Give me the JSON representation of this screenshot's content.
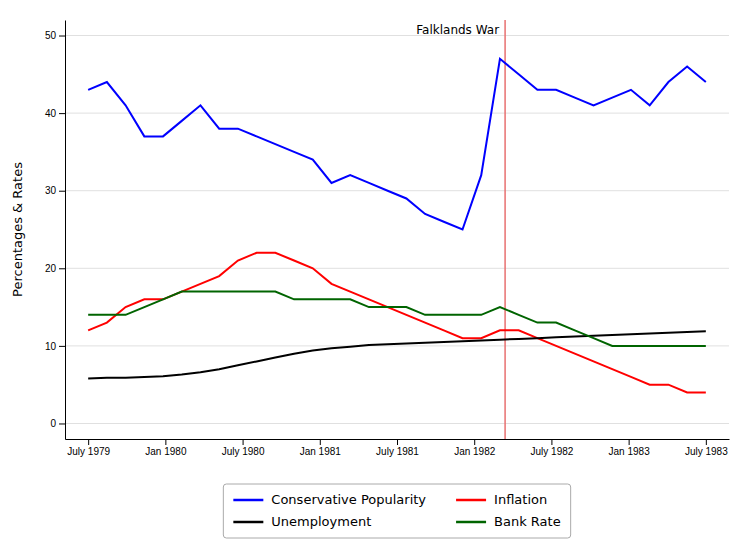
{
  "chart_data": {
    "type": "line",
    "ylabel": "Percentages & Rates",
    "x": [
      0,
      0.2424242424,
      0.4848484848,
      0.7272727273,
      0.9696969697,
      1.2121212121,
      1.4545454545,
      1.696969697,
      1.9393939394,
      2.1818181818,
      2.4242424242,
      2.6666666667,
      2.9090909091,
      3.1515151515,
      3.3939393939,
      3.6363636364,
      3.8787878788,
      4.1212121212,
      4.3636363636,
      4.6060606061,
      4.8484848485,
      5.0909090909,
      5.3333333333,
      5.5757575758,
      5.8181818182,
      6.0606060606,
      6.303030303,
      6.5454545455,
      6.7878787879,
      7.0303030303,
      7.2727272727,
      7.5151515152,
      7.7575757576,
      8
    ],
    "series": [
      {
        "name": "Conservative Popularity",
        "color": "#0000ff",
        "values": [
          43,
          44,
          41,
          37,
          37,
          39,
          41,
          38,
          38,
          37,
          36,
          35,
          34,
          31,
          32,
          31,
          30,
          29,
          27,
          26,
          25,
          32,
          47,
          45,
          43,
          43,
          42,
          41,
          42,
          43,
          41,
          44,
          46,
          44
        ]
      },
      {
        "name": "Inflation",
        "color": "#ff0000",
        "values": [
          12,
          13,
          15,
          16,
          16,
          17,
          18,
          19,
          21,
          22,
          22,
          21,
          20,
          18,
          17,
          16,
          15,
          14,
          13,
          12,
          11,
          11,
          12,
          12,
          11,
          10,
          9,
          8,
          7,
          6,
          5,
          5,
          4,
          4
        ]
      },
      {
        "name": "Unemployment",
        "color": "#000000",
        "values": [
          5.8,
          5.9,
          5.9,
          6.0,
          6.1,
          6.3,
          6.6,
          7.0,
          7.5,
          8.0,
          8.5,
          9.0,
          9.4,
          9.7,
          9.9,
          10.1,
          10.2,
          10.3,
          10.4,
          10.5,
          10.6,
          10.7,
          10.8,
          10.9,
          11.0,
          11.1,
          11.2,
          11.3,
          11.4,
          11.5,
          11.6,
          11.7,
          11.8,
          11.9
        ]
      },
      {
        "name": "Bank Rate",
        "color": "#006400",
        "values": [
          14,
          14,
          14,
          15,
          16,
          17,
          17,
          17,
          17,
          17,
          17,
          16,
          16,
          16,
          16,
          15,
          15,
          15,
          14,
          14,
          14,
          14,
          15,
          14,
          13,
          13,
          12,
          11,
          10,
          10,
          10,
          10,
          10,
          10
        ]
      }
    ],
    "xlim": [
      -0.3,
      8.3
    ],
    "xticks": [
      {
        "value": 0,
        "label": "July 1979"
      },
      {
        "value": 1,
        "label": "Jan 1980"
      },
      {
        "value": 2,
        "label": "July 1980"
      },
      {
        "value": 3,
        "label": "Jan 1981"
      },
      {
        "value": 4,
        "label": "July 1981"
      },
      {
        "value": 5,
        "label": "Jan 1982"
      },
      {
        "value": 6,
        "label": "July 1982"
      },
      {
        "value": 7,
        "label": "Jan 1983"
      },
      {
        "value": 8,
        "label": "July 1983"
      }
    ],
    "ylim": [
      -2,
      52
    ],
    "yticks": [
      0,
      10,
      20,
      30,
      40,
      50
    ],
    "grid": "y",
    "legend": "bottom",
    "annotations": [
      {
        "text": "Falklands War",
        "x": 5.4,
        "color": "#e87070"
      }
    ]
  }
}
